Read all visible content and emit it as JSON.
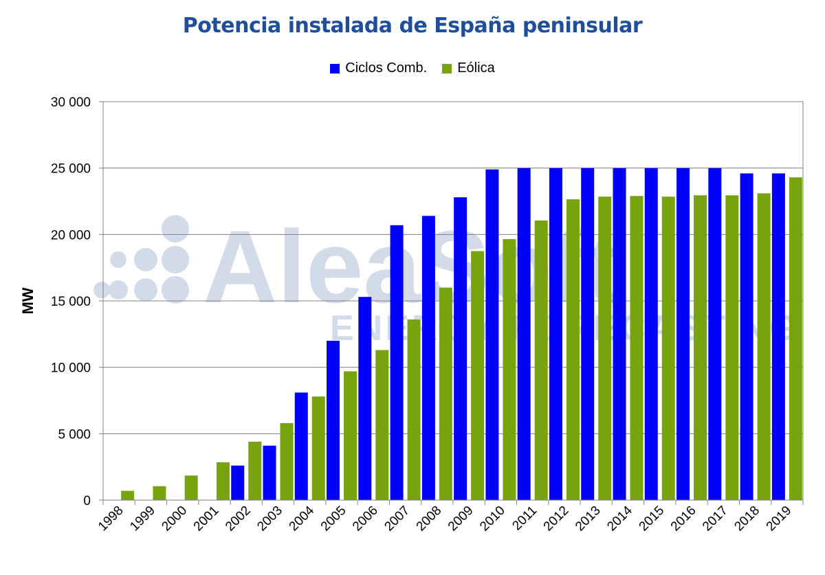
{
  "chart_data": {
    "type": "bar",
    "title": "Potencia instalada de España peninsular",
    "xlabel": "",
    "ylabel": "MW",
    "ylim": [
      0,
      30000
    ],
    "yticks": [
      0,
      5000,
      10000,
      15000,
      20000,
      25000,
      30000
    ],
    "ytick_labels": [
      "0",
      "5 000",
      "10 000",
      "15 000",
      "20 000",
      "25 000",
      "30 000"
    ],
    "grid": true,
    "legend_position": "top-center",
    "categories": [
      "1998",
      "1999",
      "2000",
      "2001",
      "2002",
      "2003",
      "2004",
      "2005",
      "2006",
      "2007",
      "2008",
      "2009",
      "2010",
      "2011",
      "2012",
      "2013",
      "2014",
      "2015",
      "2016",
      "2017",
      "2018",
      "2019"
    ],
    "series": [
      {
        "name": "Ciclos Comb.",
        "color": "#0000ff",
        "values": [
          0,
          0,
          0,
          0,
          2600,
          4100,
          8100,
          12000,
          15300,
          20700,
          21400,
          22800,
          24900,
          25000,
          25000,
          25000,
          25000,
          25000,
          25000,
          25000,
          24600,
          24600
        ]
      },
      {
        "name": "Eólica",
        "color": "#77a30e",
        "values": [
          700,
          1050,
          1850,
          2850,
          4400,
          5800,
          7800,
          9700,
          11300,
          13600,
          16000,
          18750,
          19650,
          21050,
          22650,
          22850,
          22900,
          22850,
          22950,
          22950,
          23100,
          24300
        ]
      }
    ],
    "watermark": {
      "main": "AleaSoft",
      "sub": "ENERGY FORECASTING"
    }
  }
}
